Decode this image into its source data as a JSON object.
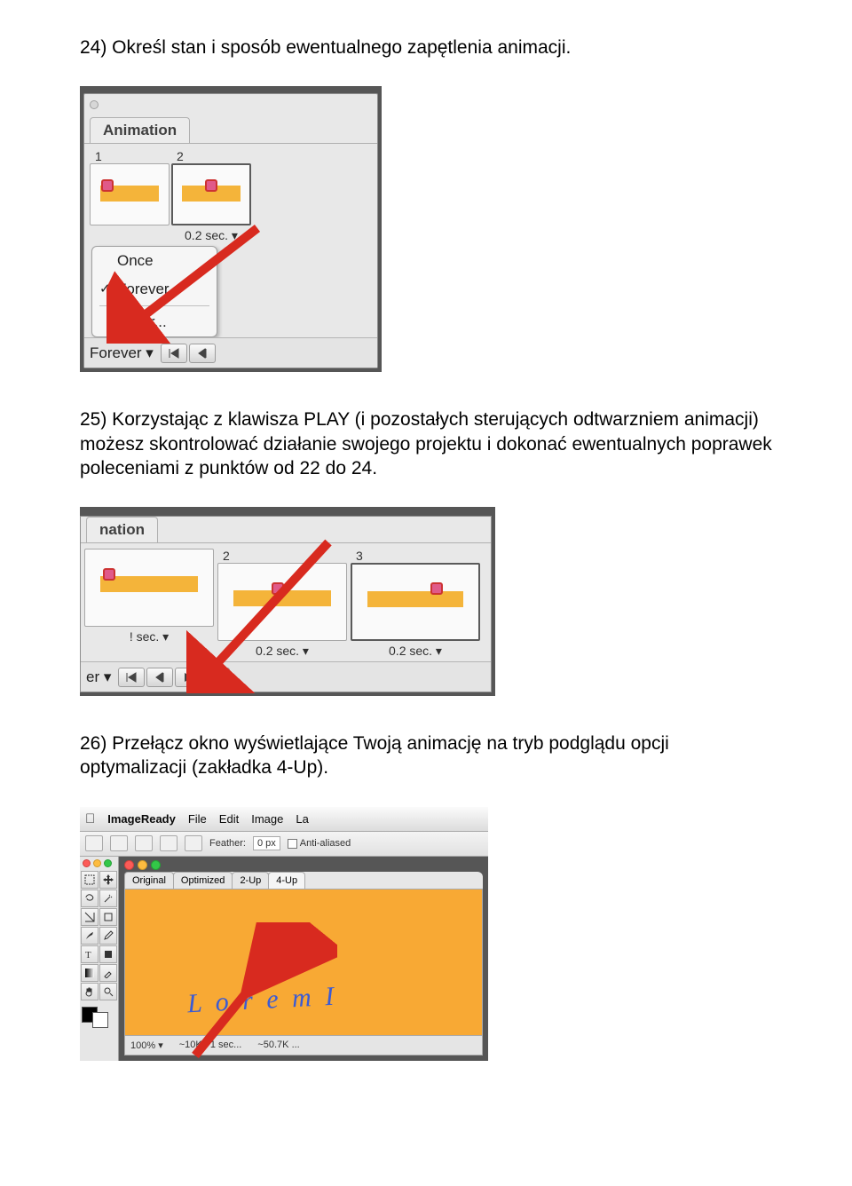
{
  "para24": "24) Określ stan i sposób ewentualnego zapętlenia animacji.",
  "para25": "25) Korzystając z klawisza PLAY (i pozostałych sterujących odtwarzniem animacji) możesz skontrolować działanie swojego projektu i dokonać ewentualnych poprawek poleceniami z punktów od 22 do 24.",
  "para26": "26) Przełącz okno wyświetlające Twoją animację na tryb podglądu opcji optymalizacji (zakładka 4-Up).",
  "fig1": {
    "tab_label": "Animation",
    "frames": [
      {
        "num": "1",
        "time": " ",
        "sprite_left": "14%"
      },
      {
        "num": "2",
        "time": "0.2 sec.  ▾",
        "sprite_left": "42%"
      }
    ],
    "loop_menu": {
      "items": [
        "Once",
        "Forever",
        "Other..."
      ],
      "checked_index": 1
    },
    "footer_label": "Forever ▾",
    "arrow_color": "#d82a1f"
  },
  "fig2": {
    "tab_label": "nation",
    "frames": [
      {
        "num": " ",
        "time": "! sec.  ▾",
        "sprite_left": "14%"
      },
      {
        "num": "2",
        "time": "0.2 sec.  ▾",
        "sprite_left": "42%"
      },
      {
        "num": "3",
        "time": "0.2 sec.  ▾",
        "sprite_left": "62%"
      }
    ],
    "footer_label": "er   ▾",
    "arrow_color": "#d82a1f"
  },
  "fig3": {
    "menubar": {
      "app": "ImageReady",
      "items": [
        "File",
        "Edit",
        "Image",
        "La"
      ]
    },
    "toolopts": {
      "feather_label": "Feather:",
      "feather_value": "0 px",
      "anti_label": "Anti-aliased"
    },
    "doc_tabs": [
      "Original",
      "Optimized",
      "2-Up",
      "4-Up"
    ],
    "active_tab_index": 3,
    "canvas_text": "L o r e m  I",
    "status": {
      "zoom": "100%  ▾",
      "info1": "~10K / 1 sec...",
      "info2": "~50.7K ..."
    },
    "arrow_color": "#d82a1f"
  }
}
